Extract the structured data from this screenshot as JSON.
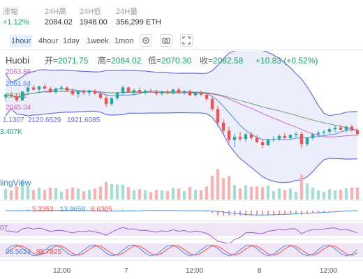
{
  "stats": {
    "change_label": "涨幅",
    "change_value": "+1.12%",
    "high_label": "24H高",
    "high_value": "2084.02",
    "low_label": "24H低",
    "low_value": "1948.00",
    "volume_label": "24H量",
    "volume_value": "356,299 ETH"
  },
  "toolbar": {
    "timeframes": [
      "1hour",
      "4hour",
      "1day",
      "1week",
      "1mon"
    ],
    "active_timeframe": "1hour",
    "icons": [
      "settings-icon",
      "camera-icon",
      "fullscreen-icon"
    ]
  },
  "ohlc": {
    "pair": "Huobi",
    "open_label": "开=",
    "open_value": "2071.75",
    "high_label": "高=",
    "high_value": "2084.02",
    "low_label": "低=",
    "low_value": "2070.30",
    "close_label": "收=",
    "close_value": "2082.58",
    "change_text": "+10.83 (+0.52%)"
  },
  "legends": {
    "ma1": "2063.88",
    "ma2": "2061.84",
    "ma3": "2021.1",
    "ma4": "2045.34",
    "boll": [
      "1.1307",
      "2120.6529",
      "1921.6085"
    ],
    "vol": "3.407K",
    "macd": [
      "5.3353",
      "13.9658",
      "8.6305"
    ],
    "rsi": "07",
    "kdj": [
      "98.5624",
      "88.7825"
    ]
  },
  "watermark": "lingView",
  "x_axis": [
    "12:00",
    "7",
    "12:00",
    "8",
    "12:00"
  ],
  "colors": {
    "up": "#26a69a",
    "down": "#ef5350",
    "band": "#6b6fd6",
    "band_fill": "#e6e7fb",
    "ma_blue": "#4e8fe0",
    "ma_pink": "#d066c8",
    "ma_green": "#6aa070"
  },
  "chart_data": {
    "type": "candlestick",
    "candles": [
      [
        2048,
        2055,
        2040,
        2052
      ],
      [
        2052,
        2058,
        2046,
        2049
      ],
      [
        2049,
        2054,
        2038,
        2041
      ],
      [
        2041,
        2060,
        2040,
        2058
      ],
      [
        2058,
        2070,
        2052,
        2066
      ],
      [
        2066,
        2071,
        2060,
        2062
      ],
      [
        2062,
        2070,
        2055,
        2068
      ],
      [
        2068,
        2074,
        2062,
        2064
      ],
      [
        2064,
        2068,
        2055,
        2057
      ],
      [
        2057,
        2066,
        2054,
        2064
      ],
      [
        2064,
        2070,
        2060,
        2066
      ],
      [
        2066,
        2068,
        2058,
        2060
      ],
      [
        2060,
        2064,
        2050,
        2053
      ],
      [
        2053,
        2060,
        2046,
        2058
      ],
      [
        2058,
        2063,
        2052,
        2056
      ],
      [
        2056,
        2062,
        2050,
        2060
      ],
      [
        2060,
        2063,
        2052,
        2054
      ],
      [
        2054,
        2058,
        2043,
        2046
      ],
      [
        2046,
        2052,
        2028,
        2034
      ],
      [
        2034,
        2048,
        2030,
        2045
      ],
      [
        2045,
        2058,
        2042,
        2056
      ],
      [
        2056,
        2070,
        2052,
        2066
      ],
      [
        2066,
        2068,
        2055,
        2058
      ],
      [
        2058,
        2064,
        2050,
        2061
      ],
      [
        2061,
        2066,
        2054,
        2056
      ],
      [
        2056,
        2062,
        2052,
        2060
      ],
      [
        2060,
        2064,
        2056,
        2058
      ],
      [
        2058,
        2062,
        2050,
        2054
      ],
      [
        2054,
        2060,
        2050,
        2058
      ],
      [
        2058,
        2062,
        2053,
        2055
      ],
      [
        2055,
        2064,
        2052,
        2062
      ],
      [
        2062,
        2066,
        2054,
        2056
      ],
      [
        2056,
        2061,
        2052,
        2059
      ],
      [
        2059,
        2062,
        2049,
        2051
      ],
      [
        2051,
        2058,
        2048,
        2056
      ],
      [
        2056,
        2060,
        2049,
        2052
      ],
      [
        2052,
        2056,
        2040,
        2044
      ],
      [
        2044,
        2048,
        2020,
        2024
      ],
      [
        2024,
        2030,
        1990,
        1998
      ],
      [
        1998,
        2004,
        1975,
        1982
      ],
      [
        1982,
        1990,
        1958,
        1964
      ],
      [
        1964,
        1976,
        1950,
        1970
      ],
      [
        1970,
        1980,
        1962,
        1966
      ],
      [
        1966,
        1978,
        1960,
        1975
      ],
      [
        1975,
        1980,
        1964,
        1968
      ],
      [
        1968,
        1974,
        1958,
        1960
      ],
      [
        1960,
        1966,
        1948,
        1954
      ],
      [
        1954,
        1966,
        1952,
        1964
      ],
      [
        1964,
        1972,
        1960,
        1966
      ],
      [
        1966,
        1975,
        1962,
        1972
      ],
      [
        1972,
        1978,
        1966,
        1968
      ],
      [
        1968,
        1976,
        1964,
        1974
      ],
      [
        1974,
        1980,
        1970,
        1976
      ],
      [
        1976,
        1980,
        1948,
        1956
      ],
      [
        1956,
        1970,
        1952,
        1968
      ],
      [
        1968,
        1978,
        1964,
        1975
      ],
      [
        1975,
        1982,
        1970,
        1978
      ],
      [
        1978,
        1984,
        1974,
        1980
      ],
      [
        1980,
        1988,
        1976,
        1985
      ],
      [
        1985,
        1992,
        1980,
        1988
      ],
      [
        1988,
        1994,
        1982,
        1984
      ],
      [
        1984,
        1992,
        1978,
        1990
      ],
      [
        1990,
        1994,
        1980,
        1983
      ],
      [
        1983,
        1986,
        1972,
        1976
      ]
    ]
  }
}
